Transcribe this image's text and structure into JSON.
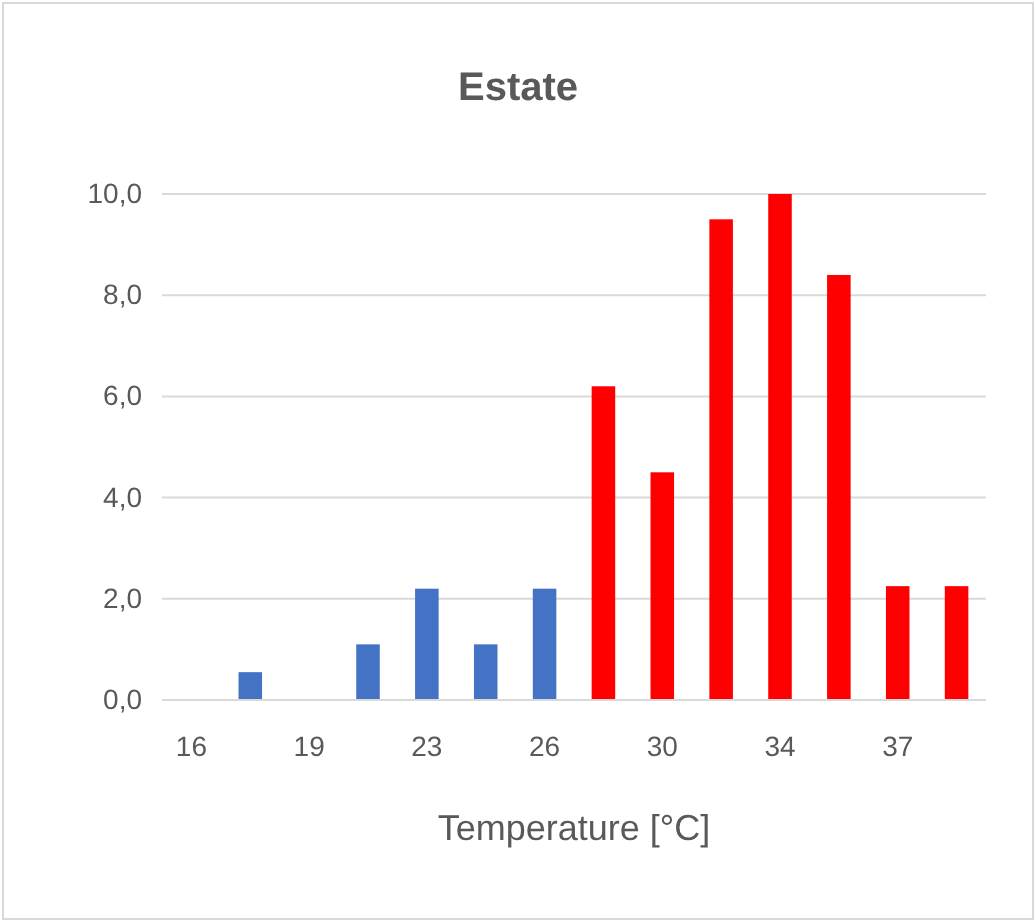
{
  "chart_data": {
    "type": "bar",
    "title": "Estate",
    "xlabel": "Temperature [°C]",
    "categories": [
      "16",
      null,
      "19",
      null,
      "23",
      null,
      "26",
      null,
      "30",
      null,
      "34",
      null,
      "37",
      null
    ],
    "values": [
      0,
      0.55,
      0,
      1.1,
      2.2,
      1.1,
      2.2,
      6.2,
      4.5,
      9.5,
      10.0,
      8.4,
      2.25,
      2.25
    ],
    "colors": [
      "#4472c4",
      "#4472c4",
      "#4472c4",
      "#4472c4",
      "#4472c4",
      "#4472c4",
      "#4472c4",
      "#ff0000",
      "#ff0000",
      "#ff0000",
      "#ff0000",
      "#ff0000",
      "#ff0000",
      "#ff0000"
    ],
    "ylim": [
      0,
      10
    ],
    "yticks": [
      {
        "value": 0,
        "label": "0,0"
      },
      {
        "value": 2,
        "label": "2,0"
      },
      {
        "value": 4,
        "label": "4,0"
      },
      {
        "value": 6,
        "label": "6,0"
      },
      {
        "value": 8,
        "label": "8,0"
      },
      {
        "value": 10,
        "label": "10,0"
      }
    ],
    "grid": "y"
  }
}
